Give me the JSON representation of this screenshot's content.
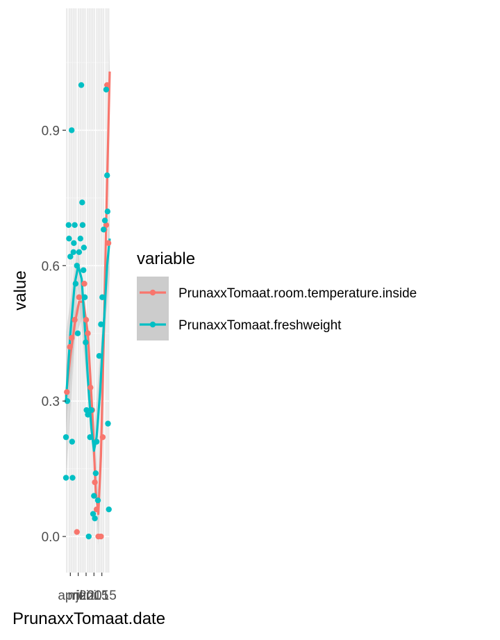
{
  "colors": {
    "panel_bg": "#ebebeb",
    "grid_major": "#ffffff",
    "grid_minor": "#f5f5f5",
    "ribbon": "#bebebe",
    "legend_key_bg": "#cccccc",
    "tick_text": "#4d4d4d"
  },
  "chart_data": {
    "type": "line",
    "subtype": "line+scatter with smoothed trend and confidence ribbon",
    "xlabel": "PrunaxxTomaat.date",
    "ylabel": "value",
    "x_tick_labels": [
      "april",
      "mei",
      "juni",
      "2015",
      "2015"
    ],
    "x_range": [
      0,
      1
    ],
    "x_note": "x values are relative positions along the date axis (0 = first date, 1 = last date)",
    "y_ticks": [
      0.0,
      0.3,
      0.6,
      0.9
    ],
    "y_tick_labels": [
      "0.0",
      "0.3",
      "0.6",
      "0.9"
    ],
    "ylim": [
      -0.08,
      1.17
    ],
    "grid": true,
    "legend": {
      "title": "variable",
      "position": "right",
      "entries": [
        {
          "label": "PrunaxxTomaat.room.temperature.inside",
          "color": "#F8766D"
        },
        {
          "label": "PrunaxxTomaat.freshweight",
          "color": "#00BFC4"
        }
      ]
    },
    "series": [
      {
        "name": "PrunaxxTomaat.room.temperature.inside",
        "color": "#F8766D",
        "points": [
          {
            "x": 0.02,
            "y": 0.32
          },
          {
            "x": 0.09,
            "y": 0.42
          },
          {
            "x": 0.13,
            "y": 0.44
          },
          {
            "x": 0.2,
            "y": 0.48
          },
          {
            "x": 0.25,
            "y": 0.01
          },
          {
            "x": 0.3,
            "y": 0.53
          },
          {
            "x": 0.38,
            "y": 0.69
          },
          {
            "x": 0.42,
            "y": 0.56
          },
          {
            "x": 0.46,
            "y": 0.48
          },
          {
            "x": 0.5,
            "y": 0.45
          },
          {
            "x": 0.56,
            "y": 0.33
          },
          {
            "x": 0.6,
            "y": 0.28
          },
          {
            "x": 0.66,
            "y": 0.12
          },
          {
            "x": 0.7,
            "y": 0.06
          },
          {
            "x": 0.74,
            "y": 0.0
          },
          {
            "x": 0.8,
            "y": 0.0
          },
          {
            "x": 0.84,
            "y": 0.22
          },
          {
            "x": 0.88,
            "y": 0.68
          },
          {
            "x": 0.92,
            "y": 0.69
          },
          {
            "x": 0.94,
            "y": 1.0
          },
          {
            "x": 0.97,
            "y": 0.65
          }
        ],
        "trend": [
          {
            "x": 0.0,
            "y": 0.31
          },
          {
            "x": 0.1,
            "y": 0.4
          },
          {
            "x": 0.2,
            "y": 0.47
          },
          {
            "x": 0.3,
            "y": 0.52
          },
          {
            "x": 0.4,
            "y": 0.52
          },
          {
            "x": 0.5,
            "y": 0.45
          },
          {
            "x": 0.6,
            "y": 0.28
          },
          {
            "x": 0.68,
            "y": 0.1
          },
          {
            "x": 0.74,
            "y": 0.05
          },
          {
            "x": 0.8,
            "y": 0.18
          },
          {
            "x": 0.86,
            "y": 0.42
          },
          {
            "x": 0.92,
            "y": 0.7
          },
          {
            "x": 1.0,
            "y": 1.03
          }
        ],
        "band": [
          {
            "x": 0.0,
            "lo": 0.24,
            "hi": 0.38
          },
          {
            "x": 0.2,
            "lo": 0.44,
            "hi": 0.5
          },
          {
            "x": 0.4,
            "lo": 0.49,
            "hi": 0.55
          },
          {
            "x": 0.6,
            "lo": 0.25,
            "hi": 0.31
          },
          {
            "x": 0.74,
            "lo": -0.02,
            "hi": 0.1
          },
          {
            "x": 0.86,
            "lo": 0.36,
            "hi": 0.48
          },
          {
            "x": 1.0,
            "lo": 0.95,
            "hi": 1.1
          }
        ]
      },
      {
        "name": "PrunaxxTomaat.freshweight",
        "color": "#00BFC4",
        "points": [
          {
            "x": 0.0,
            "y": 0.13
          },
          {
            "x": 0.0,
            "y": 0.22
          },
          {
            "x": 0.03,
            "y": 0.3
          },
          {
            "x": 0.06,
            "y": 0.69
          },
          {
            "x": 0.07,
            "y": 0.66
          },
          {
            "x": 0.1,
            "y": 0.62
          },
          {
            "x": 0.13,
            "y": 0.9
          },
          {
            "x": 0.14,
            "y": 0.21
          },
          {
            "x": 0.15,
            "y": 0.13
          },
          {
            "x": 0.17,
            "y": 0.63
          },
          {
            "x": 0.18,
            "y": 0.65
          },
          {
            "x": 0.2,
            "y": 0.69
          },
          {
            "x": 0.22,
            "y": 0.56
          },
          {
            "x": 0.25,
            "y": 0.6
          },
          {
            "x": 0.27,
            "y": 0.45
          },
          {
            "x": 0.3,
            "y": 0.63
          },
          {
            "x": 0.33,
            "y": 0.66
          },
          {
            "x": 0.35,
            "y": 1.0
          },
          {
            "x": 0.37,
            "y": 0.74
          },
          {
            "x": 0.38,
            "y": 0.69
          },
          {
            "x": 0.4,
            "y": 0.59
          },
          {
            "x": 0.41,
            "y": 0.64
          },
          {
            "x": 0.43,
            "y": 0.53
          },
          {
            "x": 0.45,
            "y": 0.43
          },
          {
            "x": 0.47,
            "y": 0.28
          },
          {
            "x": 0.5,
            "y": 0.27
          },
          {
            "x": 0.52,
            "y": 0.0
          },
          {
            "x": 0.55,
            "y": 0.22
          },
          {
            "x": 0.58,
            "y": 0.28
          },
          {
            "x": 0.62,
            "y": 0.05
          },
          {
            "x": 0.64,
            "y": 0.09
          },
          {
            "x": 0.66,
            "y": 0.04
          },
          {
            "x": 0.68,
            "y": 0.14
          },
          {
            "x": 0.7,
            "y": 0.21
          },
          {
            "x": 0.73,
            "y": 0.08
          },
          {
            "x": 0.76,
            "y": 0.4
          },
          {
            "x": 0.8,
            "y": 0.47
          },
          {
            "x": 0.83,
            "y": 0.53
          },
          {
            "x": 0.86,
            "y": 0.68
          },
          {
            "x": 0.89,
            "y": 0.7
          },
          {
            "x": 0.92,
            "y": 0.99
          },
          {
            "x": 0.94,
            "y": 0.8
          },
          {
            "x": 0.95,
            "y": 0.72
          },
          {
            "x": 0.96,
            "y": 0.25
          },
          {
            "x": 0.98,
            "y": 0.06
          }
        ],
        "trend": [
          {
            "x": 0.0,
            "y": 0.3
          },
          {
            "x": 0.1,
            "y": 0.45
          },
          {
            "x": 0.2,
            "y": 0.56
          },
          {
            "x": 0.28,
            "y": 0.6
          },
          {
            "x": 0.36,
            "y": 0.57
          },
          {
            "x": 0.44,
            "y": 0.45
          },
          {
            "x": 0.5,
            "y": 0.35
          },
          {
            "x": 0.58,
            "y": 0.24
          },
          {
            "x": 0.64,
            "y": 0.19
          },
          {
            "x": 0.7,
            "y": 0.22
          },
          {
            "x": 0.78,
            "y": 0.32
          },
          {
            "x": 0.86,
            "y": 0.46
          },
          {
            "x": 0.94,
            "y": 0.6
          },
          {
            "x": 1.0,
            "y": 0.66
          }
        ],
        "band": [
          {
            "x": 0.0,
            "lo": 0.12,
            "hi": 0.45
          },
          {
            "x": 0.28,
            "lo": 0.55,
            "hi": 0.65
          },
          {
            "x": 0.5,
            "lo": 0.31,
            "hi": 0.39
          },
          {
            "x": 0.64,
            "lo": 0.15,
            "hi": 0.23
          },
          {
            "x": 0.86,
            "lo": 0.42,
            "hi": 0.5
          },
          {
            "x": 1.0,
            "lo": 0.58,
            "hi": 0.74
          }
        ]
      }
    ]
  }
}
